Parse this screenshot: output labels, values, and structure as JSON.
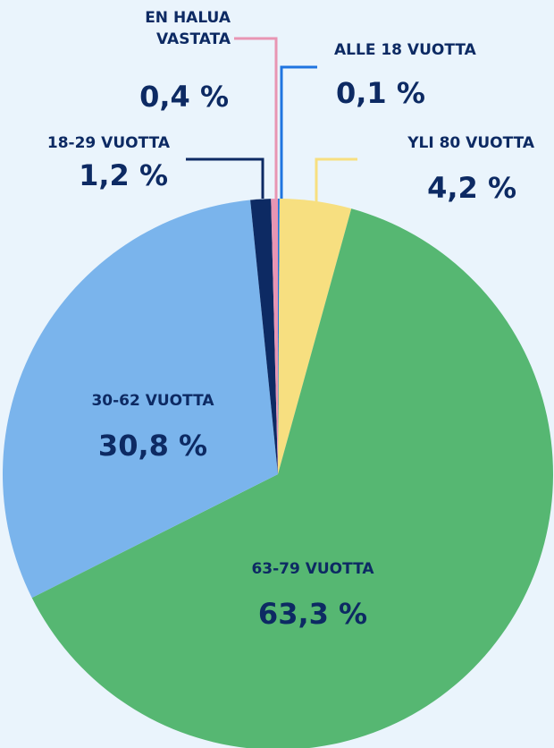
{
  "chart_data": {
    "type": "pie",
    "categories": [
      "ALLE 18 VUOTTA",
      "YLI 80 VUOTTA",
      "63-79 VUOTTA",
      "30-62 VUOTTA",
      "18-29 VUOTTA",
      "EN HALUA VASTATA"
    ],
    "values": [
      0.1,
      4.2,
      63.3,
      30.8,
      1.2,
      0.4
    ],
    "value_labels": [
      "0,1 %",
      "4,2 %",
      "63,3 %",
      "30,8 %",
      "1,2 %",
      "0,4 %"
    ],
    "colors": [
      "#1f74e0",
      "#f7df80",
      "#56b772",
      "#7ab4ec",
      "#0d2a63",
      "#e895b3"
    ]
  }
}
